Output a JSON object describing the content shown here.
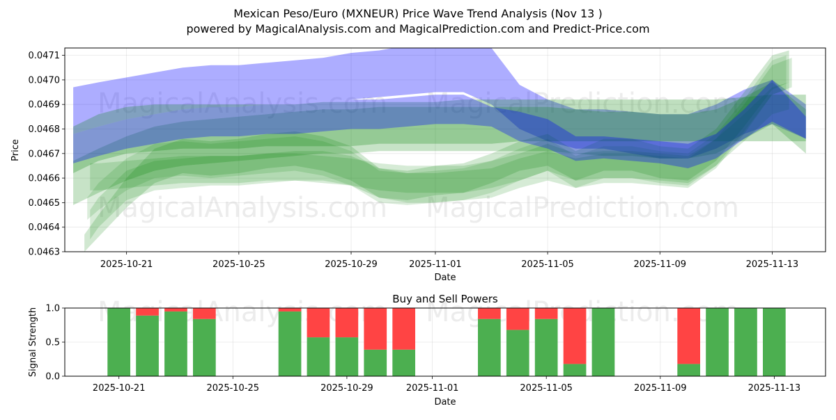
{
  "chart_data": [
    {
      "type": "area",
      "title": "Mexican Peso/Euro (MXNEUR) Price Wave Trend Analysis (Nov 13 )",
      "subtitle": "powered by MagicalAnalysis.com and MagicalPrediction.com and Predict-Price.com",
      "xlabel": "Date",
      "ylabel": "Price",
      "xlim": [
        -2.2,
        24.9
      ],
      "ylim": [
        0.0463,
        0.04713
      ],
      "x_ticks": [
        {
          "x": 0,
          "label": "2025-10-21"
        },
        {
          "x": 4,
          "label": "2025-10-25"
        },
        {
          "x": 8,
          "label": "2025-10-29"
        },
        {
          "x": 11,
          "label": "2025-11-01"
        },
        {
          "x": 15,
          "label": "2025-11-05"
        },
        {
          "x": 19,
          "label": "2025-11-09"
        },
        {
          "x": 23,
          "label": "2025-11-13"
        }
      ],
      "y_ticks": [
        {
          "v": 0.0463,
          "label": "0.0463"
        },
        {
          "v": 0.0464,
          "label": "0.0464"
        },
        {
          "v": 0.0465,
          "label": "0.0465"
        },
        {
          "v": 0.0466,
          "label": "0.0466"
        },
        {
          "v": 0.0467,
          "label": "0.0467"
        },
        {
          "v": 0.0468,
          "label": "0.0468"
        },
        {
          "v": 0.0469,
          "label": "0.0469"
        },
        {
          "v": 0.047,
          "label": "0.0470"
        },
        {
          "v": 0.0471,
          "label": "0.0471"
        }
      ],
      "grid": true,
      "watermarks": [
        "MagicalAnalysis.com",
        "MagicalPrediction.com"
      ],
      "series": [
        {
          "name": "blue-wave-upper",
          "color": "#0000ff",
          "opacity": 0.32,
          "x": [
            -1.9,
            -1,
            0,
            1,
            2,
            3,
            4,
            5,
            6,
            7,
            8,
            9,
            10,
            11,
            12,
            13,
            14,
            15,
            16,
            17,
            18,
            19,
            20,
            21,
            22,
            23,
            24.2
          ],
          "upper": [
            0.04697,
            0.04699,
            0.04701,
            0.04703,
            0.04705,
            0.04706,
            0.04706,
            0.04707,
            0.04708,
            0.04709,
            0.04711,
            0.04712,
            0.04714,
            0.04714,
            0.04715,
            0.04713,
            0.04698,
            0.04692,
            0.04688,
            0.04688,
            0.04687,
            0.04686,
            0.04686,
            0.0469,
            0.04696,
            0.047,
            0.0469
          ],
          "lower": [
            0.04678,
            0.04681,
            0.04684,
            0.04686,
            0.04688,
            0.04689,
            0.04689,
            0.0469,
            0.0469,
            0.04691,
            0.04692,
            0.04693,
            0.04694,
            0.04695,
            0.04695,
            0.0469,
            0.0468,
            0.04675,
            0.04672,
            0.04672,
            0.0467,
            0.04668,
            0.04668,
            0.04672,
            0.04678,
            0.04682,
            0.04676
          ]
        },
        {
          "name": "green-wave-1",
          "color": "#008000",
          "opacity": 0.25,
          "x": [
            -1.9,
            -1,
            0,
            1,
            2,
            3,
            4,
            5,
            6,
            7,
            8,
            9,
            10,
            11,
            12,
            13,
            14,
            15,
            16,
            17,
            18,
            19,
            20,
            21,
            22,
            23,
            24.2
          ],
          "upper": [
            0.04681,
            0.04686,
            0.04689,
            0.0469,
            0.0469,
            0.0469,
            0.0469,
            0.0469,
            0.0469,
            0.04691,
            0.04691,
            0.04691,
            0.04691,
            0.04691,
            0.04692,
            0.04692,
            0.04692,
            0.04692,
            0.04692,
            0.04692,
            0.04692,
            0.04692,
            0.04692,
            0.04692,
            0.04693,
            0.04694,
            0.04694
          ],
          "lower": [
            0.04662,
            0.04667,
            0.0467,
            0.04671,
            0.04672,
            0.04672,
            0.04672,
            0.04673,
            0.04673,
            0.04673,
            0.04673,
            0.04674,
            0.04674,
            0.04674,
            0.04674,
            0.04674,
            0.04675,
            0.04675,
            0.04675,
            0.04675,
            0.04675,
            0.04675,
            0.04675,
            0.04675,
            0.04675,
            0.04675,
            0.04675
          ]
        },
        {
          "name": "green-wave-2",
          "color": "#008000",
          "opacity": 0.22,
          "x": [
            -1.9,
            -1,
            0,
            1,
            2,
            3,
            4,
            5,
            6,
            7,
            8,
            9,
            10,
            11,
            12,
            13,
            14,
            15,
            16,
            17,
            18,
            19,
            20,
            21,
            22,
            23,
            24.2
          ],
          "upper": [
            0.04667,
            0.04672,
            0.04677,
            0.04681,
            0.04683,
            0.04684,
            0.04685,
            0.04686,
            0.04687,
            0.04688,
            0.04688,
            0.04689,
            0.04689,
            0.04689,
            0.04689,
            0.04689,
            0.04689,
            0.04689,
            0.04688,
            0.04687,
            0.04687,
            0.04686,
            0.04686,
            0.04688,
            0.04693,
            0.04699,
            0.04688
          ],
          "lower": [
            0.04649,
            0.04654,
            0.04659,
            0.04663,
            0.04665,
            0.04666,
            0.04667,
            0.04668,
            0.04669,
            0.0467,
            0.0467,
            0.04671,
            0.04671,
            0.04671,
            0.04671,
            0.04671,
            0.04671,
            0.04671,
            0.0467,
            0.04669,
            0.04669,
            0.04668,
            0.04668,
            0.0467,
            0.04676,
            0.04682,
            0.0467
          ]
        },
        {
          "name": "green-wave-3",
          "color": "#008000",
          "opacity": 0.18,
          "x": [
            -1.5,
            -1,
            0,
            1,
            2,
            3,
            4,
            5,
            6,
            7,
            8,
            9,
            10,
            11,
            12,
            13,
            14,
            15,
            16,
            17,
            18,
            19,
            20,
            21,
            22,
            23,
            23.6
          ],
          "upper": [
            0.04637,
            0.04645,
            0.0466,
            0.04672,
            0.04676,
            0.04675,
            0.04676,
            0.04678,
            0.04679,
            0.04677,
            0.04673,
            0.04664,
            0.04663,
            0.04665,
            0.04666,
            0.0467,
            0.04675,
            0.04678,
            0.04671,
            0.04676,
            0.04676,
            0.04673,
            0.04672,
            0.0468,
            0.04695,
            0.0471,
            0.04712
          ],
          "lower": [
            0.0463,
            0.04636,
            0.04648,
            0.04658,
            0.04662,
            0.04661,
            0.04662,
            0.04664,
            0.04665,
            0.04663,
            0.04659,
            0.04652,
            0.04651,
            0.04653,
            0.04654,
            0.04658,
            0.04663,
            0.04665,
            0.04659,
            0.04663,
            0.04663,
            0.0466,
            0.04659,
            0.04667,
            0.04681,
            0.04696,
            0.04699
          ]
        },
        {
          "name": "green-wave-4",
          "color": "#008000",
          "opacity": 0.16,
          "x": [
            -1.3,
            -1,
            0,
            1,
            2,
            3,
            4,
            5,
            6,
            7,
            8,
            9,
            10,
            11,
            12,
            13,
            14,
            15,
            16,
            17,
            18,
            19,
            20,
            21,
            22,
            23,
            23.7
          ],
          "upper": [
            0.04647,
            0.04652,
            0.04663,
            0.04667,
            0.04668,
            0.04669,
            0.04669,
            0.0467,
            0.04671,
            0.04671,
            0.04669,
            0.04664,
            0.04662,
            0.04662,
            0.04663,
            0.04664,
            0.04668,
            0.04671,
            0.04668,
            0.0467,
            0.0467,
            0.04669,
            0.04668,
            0.04676,
            0.0469,
            0.04706,
            0.04709
          ],
          "lower": [
            0.04635,
            0.0464,
            0.04651,
            0.04655,
            0.04656,
            0.04657,
            0.04657,
            0.04658,
            0.04659,
            0.04659,
            0.04657,
            0.04652,
            0.0465,
            0.0465,
            0.04651,
            0.04652,
            0.04656,
            0.04659,
            0.04656,
            0.04658,
            0.04658,
            0.04657,
            0.04656,
            0.04664,
            0.04678,
            0.04694,
            0.04697
          ]
        },
        {
          "name": "green-wave-5",
          "color": "#008000",
          "opacity": 0.16,
          "x": [
            -1.3,
            -1,
            0,
            1,
            2,
            3,
            4,
            5,
            6,
            7,
            8,
            9,
            10,
            11,
            12,
            13,
            14,
            15,
            16,
            17,
            18,
            19,
            20,
            21,
            22,
            23,
            23.6
          ],
          "upper": [
            0.04666,
            0.04666,
            0.04667,
            0.04668,
            0.04669,
            0.04669,
            0.04669,
            0.0467,
            0.0467,
            0.04669,
            0.04668,
            0.04666,
            0.04665,
            0.04665,
            0.04665,
            0.04667,
            0.0467,
            0.04674,
            0.0467,
            0.04671,
            0.04671,
            0.0467,
            0.04669,
            0.04676,
            0.04686,
            0.04697,
            0.04699
          ],
          "lower": [
            0.04655,
            0.04655,
            0.04656,
            0.04657,
            0.04658,
            0.04658,
            0.04658,
            0.04659,
            0.04659,
            0.04658,
            0.04657,
            0.04655,
            0.04654,
            0.04654,
            0.04654,
            0.04656,
            0.04659,
            0.04663,
            0.04659,
            0.0466,
            0.0466,
            0.04659,
            0.04658,
            0.04665,
            0.04675,
            0.04686,
            0.04688
          ]
        },
        {
          "name": "green-wave-6",
          "color": "#008000",
          "opacity": 0.14,
          "x": [
            -1.4,
            -1,
            0,
            1,
            2,
            3,
            4,
            5,
            6,
            7,
            8,
            9,
            10,
            11,
            12,
            13,
            14,
            15,
            16,
            17,
            18,
            19,
            20,
            21,
            22,
            23,
            23.5
          ],
          "upper": [
            0.04652,
            0.04658,
            0.04668,
            0.04674,
            0.04675,
            0.04674,
            0.04675,
            0.04676,
            0.04677,
            0.04675,
            0.04671,
            0.04663,
            0.04662,
            0.04663,
            0.04664,
            0.04667,
            0.04672,
            0.04676,
            0.04669,
            0.04673,
            0.04673,
            0.04671,
            0.0467,
            0.04678,
            0.04692,
            0.04708,
            0.0471
          ],
          "lower": [
            0.04643,
            0.04647,
            0.04655,
            0.0466,
            0.04661,
            0.0466,
            0.04661,
            0.04662,
            0.04663,
            0.04661,
            0.04657,
            0.0465,
            0.04649,
            0.0465,
            0.04651,
            0.04654,
            0.04659,
            0.04663,
            0.04656,
            0.0466,
            0.0466,
            0.04658,
            0.04657,
            0.04665,
            0.04679,
            0.04694,
            0.04696
          ]
        },
        {
          "name": "blue-wave-lower",
          "color": "#0000ff",
          "opacity": 0.32,
          "x": [
            -1.9,
            -1,
            0,
            1,
            2,
            3,
            4,
            5,
            6,
            7,
            8,
            9,
            10,
            11,
            12,
            13,
            14,
            15,
            16,
            17,
            18,
            19,
            20,
            21,
            22,
            23,
            24.2
          ],
          "upper": [
            0.04678,
            0.04681,
            0.04684,
            0.04686,
            0.04688,
            0.04689,
            0.04689,
            0.0469,
            0.0469,
            0.04691,
            0.04692,
            0.04692,
            0.04693,
            0.04694,
            0.04694,
            0.04689,
            0.04687,
            0.04684,
            0.04677,
            0.04677,
            0.04676,
            0.04675,
            0.04674,
            0.04678,
            0.04688,
            0.047,
            0.04685
          ],
          "lower": [
            0.04666,
            0.04669,
            0.04672,
            0.04674,
            0.04676,
            0.04677,
            0.04677,
            0.04678,
            0.04678,
            0.04679,
            0.0468,
            0.0468,
            0.04681,
            0.04682,
            0.04682,
            0.04681,
            0.04675,
            0.04672,
            0.04667,
            0.04668,
            0.04667,
            0.04666,
            0.04664,
            0.04668,
            0.04676,
            0.04683,
            0.04676
          ]
        }
      ]
    },
    {
      "type": "bar",
      "title": "Buy and Sell Powers",
      "xlabel": "Date",
      "ylabel": "Signal Strength",
      "xlim": [
        -1.9,
        24.8
      ],
      "ylim": [
        0,
        1
      ],
      "x_ticks": [
        {
          "x": 0,
          "label": "2025-10-21"
        },
        {
          "x": 4,
          "label": "2025-10-25"
        },
        {
          "x": 8,
          "label": "2025-10-29"
        },
        {
          "x": 11,
          "label": "2025-11-01"
        },
        {
          "x": 15,
          "label": "2025-11-05"
        },
        {
          "x": 19,
          "label": "2025-11-09"
        },
        {
          "x": 23,
          "label": "2025-11-13"
        }
      ],
      "y_ticks": [
        {
          "v": 0.0,
          "label": "0.0"
        },
        {
          "v": 0.5,
          "label": "0.5"
        },
        {
          "v": 1.0,
          "label": "1.0"
        }
      ],
      "grid": true,
      "watermarks": [
        "MagicalAnalysis.com",
        "MagicalPrediction.com"
      ],
      "buy_color": "#4caf50",
      "sell_color": "#ff4444",
      "bars": [
        {
          "x": 0,
          "buy": 1.0,
          "sell": 0.0
        },
        {
          "x": 1,
          "buy": 0.89,
          "sell": 0.11
        },
        {
          "x": 2,
          "buy": 0.95,
          "sell": 0.05
        },
        {
          "x": 3,
          "buy": 0.84,
          "sell": 0.16
        },
        {
          "x": 6,
          "buy": 0.95,
          "sell": 0.05
        },
        {
          "x": 7,
          "buy": 0.57,
          "sell": 0.43
        },
        {
          "x": 8,
          "buy": 0.57,
          "sell": 0.43
        },
        {
          "x": 9,
          "buy": 0.39,
          "sell": 0.61
        },
        {
          "x": 10,
          "buy": 0.39,
          "sell": 0.61
        },
        {
          "x": 13,
          "buy": 0.84,
          "sell": 0.16
        },
        {
          "x": 14,
          "buy": 0.68,
          "sell": 0.32
        },
        {
          "x": 15,
          "buy": 0.84,
          "sell": 0.16
        },
        {
          "x": 16,
          "buy": 0.18,
          "sell": 0.82
        },
        {
          "x": 17,
          "buy": 1.0,
          "sell": 0.0
        },
        {
          "x": 20,
          "buy": 0.18,
          "sell": 0.82
        },
        {
          "x": 21,
          "buy": 1.0,
          "sell": 0.0
        },
        {
          "x": 22,
          "buy": 1.0,
          "sell": 0.0
        },
        {
          "x": 23,
          "buy": 1.0,
          "sell": 0.0
        }
      ]
    }
  ]
}
